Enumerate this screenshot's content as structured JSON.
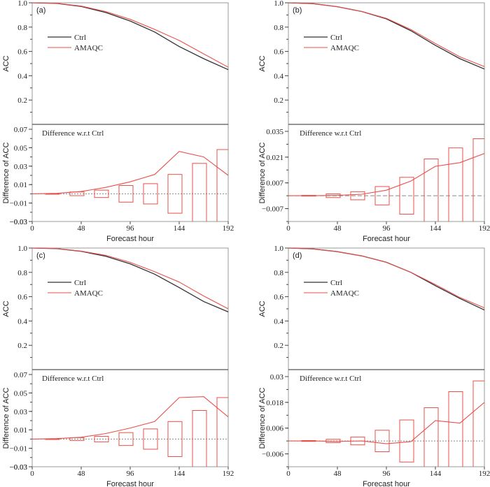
{
  "chart_data": [
    {
      "panel": "(a)",
      "type": "line",
      "top": {
        "ylabel": "ACC",
        "ylim": [
          0,
          1.0
        ],
        "yticks": [
          0.2,
          0.4,
          0.6,
          0.8,
          1.0
        ],
        "ytick_labels": [
          "0.2",
          "0.4",
          "0.6",
          "0.8",
          "1.0"
        ],
        "legend": [
          "Ctrl",
          "AMAQC"
        ],
        "legend_position": "upper-left",
        "x": [
          0,
          24,
          48,
          72,
          96,
          120,
          144,
          168,
          192
        ],
        "series": [
          {
            "name": "Ctrl",
            "color": "#333333",
            "values": [
              1.0,
              0.995,
              0.97,
              0.92,
              0.85,
              0.76,
              0.64,
              0.54,
              0.45
            ]
          },
          {
            "name": "AMAQC",
            "color": "#e8504a",
            "values": [
              1.0,
              0.996,
              0.973,
              0.928,
              0.864,
              0.781,
              0.69,
              0.58,
              0.47
            ]
          }
        ]
      },
      "bottom": {
        "note": "Difference w.r.t Ctrl",
        "ylabel": "Difference of ACC",
        "xlabel": "Forecast hour",
        "ylim": [
          -0.03,
          0.07
        ],
        "yticks": [
          -0.03,
          -0.01,
          0.01,
          0.03,
          0.05,
          0.07
        ],
        "ytick_labels": [
          "−0.03",
          "−0.01",
          "0.01",
          "0.03",
          "0.05",
          "0.07"
        ],
        "xlim": [
          0,
          192
        ],
        "xticks": [
          0,
          48,
          96,
          144,
          192
        ],
        "xtick_labels": [
          "0",
          "48",
          "96",
          "144",
          "192"
        ],
        "diff_x": [
          0,
          24,
          48,
          72,
          96,
          120,
          144,
          168,
          192
        ],
        "diff_values": [
          0.0,
          0.0005,
          0.0025,
          0.007,
          0.013,
          0.021,
          0.046,
          0.04,
          0.02
        ],
        "boxes": [
          {
            "x": 24,
            "low": -0.0003,
            "high": 0.0003
          },
          {
            "x": 48,
            "low": -0.002,
            "high": 0.002
          },
          {
            "x": 72,
            "low": -0.004,
            "high": 0.004
          },
          {
            "x": 96,
            "low": -0.009,
            "high": 0.009
          },
          {
            "x": 120,
            "low": -0.011,
            "high": 0.011
          },
          {
            "x": 144,
            "low": -0.021,
            "high": 0.021
          },
          {
            "x": 168,
            "low": -0.033,
            "high": 0.033
          },
          {
            "x": 192,
            "low": -0.048,
            "high": 0.048
          }
        ]
      }
    },
    {
      "panel": "(b)",
      "type": "line",
      "top": {
        "ylabel": "ACC",
        "ylim": [
          0,
          1.0
        ],
        "yticks": [
          0.2,
          0.4,
          0.6,
          0.8,
          1.0
        ],
        "ytick_labels": [
          "0.2",
          "0.4",
          "0.6",
          "0.8",
          "1.0"
        ],
        "legend": [
          "Ctrl",
          "AMAQC"
        ],
        "legend_position": "upper-left",
        "x": [
          0,
          24,
          48,
          72,
          96,
          120,
          144,
          168,
          192
        ],
        "series": [
          {
            "name": "Ctrl",
            "color": "#333333",
            "values": [
              1.0,
              0.993,
              0.968,
              0.928,
              0.868,
              0.77,
              0.65,
              0.54,
              0.455
            ]
          },
          {
            "name": "AMAQC",
            "color": "#e8504a",
            "values": [
              1.0,
              0.993,
              0.968,
              0.929,
              0.872,
              0.78,
              0.665,
              0.555,
              0.475
            ]
          }
        ]
      },
      "bottom": {
        "note": "Difference w.r.t Ctrl",
        "ylabel": "Difference of ACC",
        "xlabel": "Forecast hour",
        "ylim": [
          -0.014,
          0.039
        ],
        "yticks": [
          -0.007,
          0.007,
          0.021,
          0.035
        ],
        "ytick_labels": [
          "−0.007",
          "0.007",
          "0.021",
          "0.035"
        ],
        "xlim": [
          0,
          192
        ],
        "xticks": [
          0,
          48,
          96,
          144,
          192
        ],
        "xtick_labels": [
          "0",
          "48",
          "96",
          "144",
          "192"
        ],
        "diff_x": [
          0,
          24,
          48,
          72,
          96,
          120,
          144,
          168,
          192
        ],
        "diff_values": [
          0.0,
          0.0,
          0.0002,
          0.0008,
          0.003,
          0.008,
          0.016,
          0.018,
          0.023
        ],
        "boxes": [
          {
            "x": 24,
            "low": -0.0002,
            "high": 0.0002
          },
          {
            "x": 48,
            "low": -0.001,
            "high": 0.001
          },
          {
            "x": 72,
            "low": -0.0022,
            "high": 0.0022
          },
          {
            "x": 96,
            "low": -0.005,
            "high": 0.005
          },
          {
            "x": 120,
            "low": -0.01,
            "high": 0.01
          },
          {
            "x": 144,
            "low": -0.02,
            "high": 0.02
          },
          {
            "x": 168,
            "low": -0.026,
            "high": 0.026
          },
          {
            "x": 192,
            "low": -0.031,
            "high": 0.031
          }
        ]
      }
    },
    {
      "panel": "(c)",
      "type": "line",
      "top": {
        "ylabel": "ACC",
        "ylim": [
          0,
          1.0
        ],
        "yticks": [
          0.2,
          0.4,
          0.6,
          0.8,
          1.0
        ],
        "ytick_labels": [
          "0.2",
          "0.4",
          "0.6",
          "0.8",
          "1.0"
        ],
        "legend": [
          "Ctrl",
          "AMAQC"
        ],
        "legend_position": "upper-left",
        "x": [
          0,
          24,
          48,
          72,
          96,
          120,
          144,
          168,
          192
        ],
        "series": [
          {
            "name": "Ctrl",
            "color": "#333333",
            "values": [
              1.0,
              0.995,
              0.973,
              0.933,
              0.87,
              0.785,
              0.675,
              0.56,
              0.475
            ]
          },
          {
            "name": "AMAQC",
            "color": "#e8504a",
            "values": [
              1.0,
              0.996,
              0.975,
              0.94,
              0.882,
              0.805,
              0.72,
              0.606,
              0.5
            ]
          }
        ]
      },
      "bottom": {
        "note": "Difference w.r.t Ctrl",
        "ylabel": "Difference of ACC",
        "xlabel": "Forecast hour",
        "ylim": [
          -0.03,
          0.07
        ],
        "yticks": [
          -0.03,
          -0.01,
          0.01,
          0.03,
          0.05,
          0.07
        ],
        "ytick_labels": [
          "−0.03",
          "−0.01",
          "0.01",
          "0.03",
          "0.05",
          "0.07"
        ],
        "xlim": [
          0,
          192
        ],
        "xticks": [
          0,
          48,
          96,
          144,
          192
        ],
        "xtick_labels": [
          "0",
          "48",
          "96",
          "144",
          "192"
        ],
        "diff_x": [
          0,
          24,
          48,
          72,
          96,
          120,
          144,
          168,
          192
        ],
        "diff_values": [
          0.0,
          0.0005,
          0.002,
          0.006,
          0.012,
          0.019,
          0.045,
          0.046,
          0.024
        ],
        "boxes": [
          {
            "x": 24,
            "low": -0.0003,
            "high": 0.0003
          },
          {
            "x": 48,
            "low": -0.0015,
            "high": 0.0015
          },
          {
            "x": 72,
            "low": -0.003,
            "high": 0.003
          },
          {
            "x": 96,
            "low": -0.007,
            "high": 0.007
          },
          {
            "x": 120,
            "low": -0.011,
            "high": 0.011
          },
          {
            "x": 144,
            "low": -0.019,
            "high": 0.019
          },
          {
            "x": 168,
            "low": -0.031,
            "high": 0.031
          },
          {
            "x": 192,
            "low": -0.045,
            "high": 0.045
          }
        ]
      }
    },
    {
      "panel": "(d)",
      "type": "line",
      "top": {
        "ylabel": "ACC",
        "ylim": [
          0,
          1.0
        ],
        "yticks": [
          0.2,
          0.4,
          0.6,
          0.8,
          1.0
        ],
        "ytick_labels": [
          "0.2",
          "0.4",
          "0.6",
          "0.8",
          "1.0"
        ],
        "legend": [
          "Ctrl",
          "AMAQC"
        ],
        "legend_position": "upper-left",
        "x": [
          0,
          24,
          48,
          72,
          96,
          120,
          144,
          168,
          192
        ],
        "series": [
          {
            "name": "Ctrl",
            "color": "#333333",
            "values": [
              1.0,
              0.993,
              0.97,
              0.935,
              0.883,
              0.8,
              0.69,
              0.585,
              0.49
            ]
          },
          {
            "name": "AMAQC",
            "color": "#e8504a",
            "values": [
              1.0,
              0.993,
              0.97,
              0.935,
              0.882,
              0.8,
              0.7,
              0.593,
              0.508
            ]
          }
        ]
      },
      "bottom": {
        "note": "Difference w.r.t Ctrl",
        "ylabel": "Difference of ACC",
        "xlabel": "Forecast hour",
        "ylim": [
          -0.012,
          0.032
        ],
        "yticks": [
          -0.006,
          0.006,
          0.018,
          0.03
        ],
        "ytick_labels": [
          "−0.006",
          "0.006",
          "0.018",
          "0.03"
        ],
        "xlim": [
          0,
          192
        ],
        "xticks": [
          0,
          48,
          96,
          144,
          192
        ],
        "xtick_labels": [
          "0",
          "48",
          "96",
          "144",
          "192"
        ],
        "diff_x": [
          0,
          24,
          48,
          72,
          96,
          120,
          144,
          168,
          192
        ],
        "diff_values": [
          0.0,
          0.0,
          -0.0002,
          0.0,
          -0.0013,
          -0.0003,
          0.0095,
          0.0083,
          0.018
        ],
        "boxes": [
          {
            "x": 24,
            "low": -0.0002,
            "high": 0.0002
          },
          {
            "x": 48,
            "low": -0.0008,
            "high": 0.0008
          },
          {
            "x": 72,
            "low": -0.0018,
            "high": 0.0018
          },
          {
            "x": 96,
            "low": -0.005,
            "high": 0.005
          },
          {
            "x": 120,
            "low": -0.0098,
            "high": 0.0098
          },
          {
            "x": 144,
            "low": -0.0155,
            "high": 0.0155
          },
          {
            "x": 168,
            "low": -0.023,
            "high": 0.023
          },
          {
            "x": 192,
            "low": -0.028,
            "high": 0.028
          }
        ]
      }
    }
  ]
}
